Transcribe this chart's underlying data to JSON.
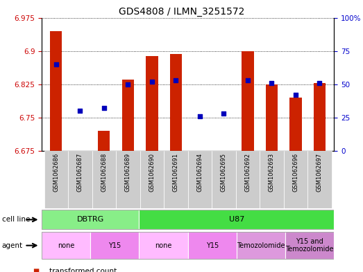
{
  "title": "GDS4808 / ILMN_3251572",
  "samples": [
    "GSM1062686",
    "GSM1062687",
    "GSM1062688",
    "GSM1062689",
    "GSM1062690",
    "GSM1062691",
    "GSM1062694",
    "GSM1062695",
    "GSM1062692",
    "GSM1062693",
    "GSM1062696",
    "GSM1062697"
  ],
  "transformed_count": [
    6.945,
    6.668,
    6.72,
    6.835,
    6.888,
    6.893,
    6.635,
    6.648,
    6.9,
    6.825,
    6.795,
    6.828
  ],
  "percentile_rank": [
    65,
    30,
    32,
    50,
    52,
    53,
    26,
    28,
    53,
    51,
    42,
    51
  ],
  "y_min": 6.675,
  "y_max": 6.975,
  "y_ticks": [
    6.675,
    6.75,
    6.825,
    6.9,
    6.975
  ],
  "y2_ticks": [
    0,
    25,
    50,
    75,
    100
  ],
  "y2_tick_labels": [
    "0",
    "25",
    "50",
    "75",
    "100%"
  ],
  "bar_color": "#cc2200",
  "dot_color": "#0000bb",
  "grid_color": "#000000",
  "xticklabel_bg": "#cccccc",
  "cell_line_groups": [
    {
      "label": "DBTRG",
      "start": 0,
      "end": 4,
      "color": "#88ee88"
    },
    {
      "label": "U87",
      "start": 4,
      "end": 12,
      "color": "#44dd44"
    }
  ],
  "agent_groups": [
    {
      "label": "none",
      "start": 0,
      "end": 2,
      "color": "#ffaaff"
    },
    {
      "label": "Y15",
      "start": 2,
      "end": 4,
      "color": "#ee88ee"
    },
    {
      "label": "none",
      "start": 4,
      "end": 6,
      "color": "#ffaaff"
    },
    {
      "label": "Y15",
      "start": 6,
      "end": 8,
      "color": "#ee88ee"
    },
    {
      "label": "Temozolomide",
      "start": 8,
      "end": 10,
      "color": "#dd88dd"
    },
    {
      "label": "Y15 and\nTemozolomide",
      "start": 10,
      "end": 12,
      "color": "#cc88cc"
    }
  ],
  "bg_color": "#ffffff",
  "tick_label_color_left": "#cc0000",
  "tick_label_color_right": "#0000cc",
  "title_fontsize": 10,
  "tick_fontsize": 7.5,
  "label_fontsize": 7.5,
  "legend_fontsize": 7.5,
  "bar_width": 0.5
}
